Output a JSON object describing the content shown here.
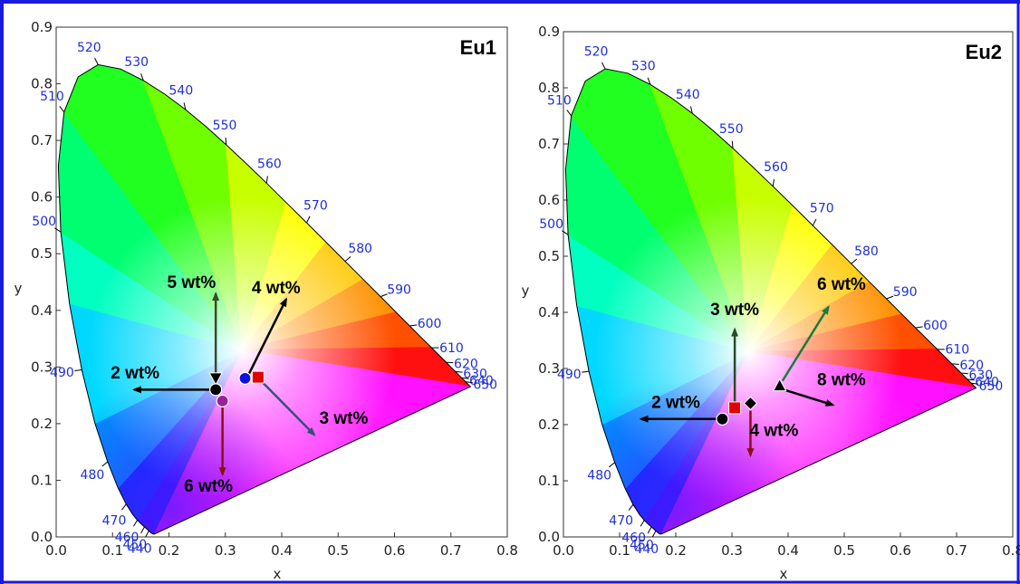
{
  "colors": {
    "border": "#1a1adf",
    "wavelength_text": "#1f2fd8"
  },
  "chart_data": [
    {
      "type": "scatter",
      "title": "Eu1",
      "xlabel": "x",
      "ylabel": "y",
      "xlim": [
        0.0,
        0.8
      ],
      "ylim": [
        0.0,
        0.9
      ],
      "xticks": [
        "0.0",
        "0.1",
        "0.2",
        "0.3",
        "0.4",
        "0.5",
        "0.6",
        "0.7",
        "0.8"
      ],
      "yticks": [
        "0.0",
        "0.1",
        "0.2",
        "0.3",
        "0.4",
        "0.5",
        "0.6",
        "0.7",
        "0.8",
        "0.9"
      ],
      "grid": false,
      "wavelength_labels": [
        "440",
        "450",
        "460",
        "470",
        "480",
        "490",
        "500",
        "510",
        "520",
        "530",
        "540",
        "550",
        "560",
        "570",
        "580",
        "590",
        "600",
        "610",
        "620",
        "630",
        "640",
        "650"
      ],
      "points": [
        {
          "marker": "triangle-down",
          "color": "#000000",
          "x": 0.283,
          "y": 0.28
        },
        {
          "marker": "circle",
          "color": "#000000",
          "x": 0.283,
          "y": 0.26
        },
        {
          "marker": "circle",
          "color": "#9b1f9b",
          "x": 0.295,
          "y": 0.24
        },
        {
          "marker": "circle",
          "color": "#1010e0",
          "x": 0.335,
          "y": 0.28
        },
        {
          "marker": "square",
          "color": "#e00000",
          "x": 0.358,
          "y": 0.282
        }
      ],
      "annotations": [
        {
          "text": "5 wt%",
          "x": 0.24,
          "y": 0.44,
          "arrow_from": [
            0.283,
            0.28
          ],
          "arrow_to": [
            0.283,
            0.43
          ],
          "arrow_color": "#3a4a2a"
        },
        {
          "text": "4 wt%",
          "x": 0.39,
          "y": 0.43,
          "arrow_from": [
            0.338,
            0.28
          ],
          "arrow_to": [
            0.408,
            0.42
          ],
          "arrow_color": "#000000"
        },
        {
          "text": "2 wt%",
          "x": 0.14,
          "y": 0.28,
          "arrow_from": [
            0.275,
            0.26
          ],
          "arrow_to": [
            0.138,
            0.26
          ],
          "arrow_color": "#000000"
        },
        {
          "text": "3 wt%",
          "x": 0.51,
          "y": 0.2,
          "arrow_from": [
            0.362,
            0.277
          ],
          "arrow_to": [
            0.458,
            0.18
          ],
          "arrow_color": "#35507a"
        },
        {
          "text": "6 wt%",
          "x": 0.27,
          "y": 0.08,
          "arrow_from": [
            0.295,
            0.235
          ],
          "arrow_to": [
            0.295,
            0.11
          ],
          "arrow_color": "#8a1010"
        }
      ]
    },
    {
      "type": "scatter",
      "title": "Eu2",
      "xlabel": "x",
      "ylabel": "y",
      "xlim": [
        0.0,
        0.8
      ],
      "ylim": [
        0.0,
        0.9
      ],
      "xticks": [
        "0.0",
        "0.1",
        "0.2",
        "0.3",
        "0.4",
        "0.5",
        "0.6",
        "0.7",
        "0.8"
      ],
      "yticks": [
        "0.0",
        "0.1",
        "0.2",
        "0.3",
        "0.4",
        "0.5",
        "0.6",
        "0.7",
        "0.8",
        "0.9"
      ],
      "grid": false,
      "wavelength_labels": [
        "440",
        "450",
        "460",
        "470",
        "480",
        "490",
        "500",
        "510",
        "520",
        "530",
        "540",
        "550",
        "560",
        "570",
        "580",
        "590",
        "600",
        "610",
        "620",
        "630",
        "640",
        "650"
      ],
      "points": [
        {
          "marker": "circle",
          "color": "#000000",
          "x": 0.283,
          "y": 0.21
        },
        {
          "marker": "square",
          "color": "#e00000",
          "x": 0.305,
          "y": 0.23
        },
        {
          "marker": "diamond",
          "color": "#000000",
          "x": 0.333,
          "y": 0.238
        },
        {
          "marker": "triangle-up",
          "color": "#000000",
          "x": 0.385,
          "y": 0.27
        }
      ],
      "annotations": [
        {
          "text": "3 wt%",
          "x": 0.305,
          "y": 0.395,
          "arrow_from": [
            0.305,
            0.232
          ],
          "arrow_to": [
            0.305,
            0.37
          ],
          "arrow_color": "#2a4a2a"
        },
        {
          "text": "6 wt%",
          "x": 0.495,
          "y": 0.44,
          "arrow_from": [
            0.39,
            0.278
          ],
          "arrow_to": [
            0.472,
            0.41
          ],
          "arrow_color": "#1a7a3a"
        },
        {
          "text": "2 wt%",
          "x": 0.2,
          "y": 0.23,
          "arrow_from": [
            0.275,
            0.21
          ],
          "arrow_to": [
            0.138,
            0.21
          ],
          "arrow_color": "#000000"
        },
        {
          "text": "8 wt%",
          "x": 0.495,
          "y": 0.27,
          "arrow_from": [
            0.393,
            0.262
          ],
          "arrow_to": [
            0.48,
            0.235
          ],
          "arrow_color": "#000000"
        },
        {
          "text": "4 wt%",
          "x": 0.375,
          "y": 0.18,
          "arrow_from": [
            0.333,
            0.225
          ],
          "arrow_to": [
            0.333,
            0.145
          ],
          "arrow_color": "#8a1010"
        }
      ]
    }
  ]
}
